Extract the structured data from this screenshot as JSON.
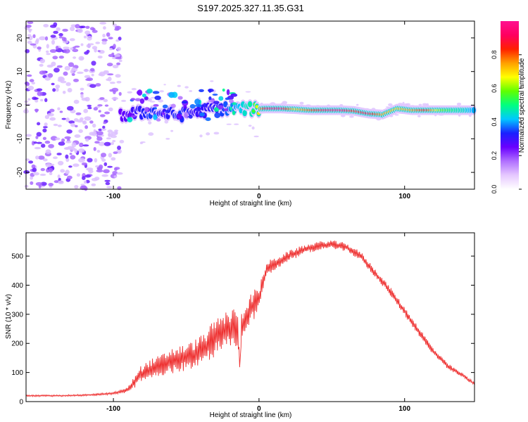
{
  "figure_title": "S197.2025.327.11.35.G31",
  "chart_data": [
    {
      "type": "heatmap",
      "title": "S197.2025.327.11.35.G31",
      "xlabel": "Height of straight line (km)",
      "ylabel": "Frequency (Hz)",
      "xlim": [
        -160,
        148
      ],
      "ylim": [
        -25,
        25
      ],
      "xticks": [
        -100,
        0,
        100
      ],
      "yticks": [
        -20,
        -10,
        0,
        10,
        20
      ],
      "colorbar": {
        "label": "Normalized spectral amplitude",
        "range": [
          0,
          1
        ],
        "ticks": [
          "0.0",
          "0.2",
          "0.4",
          "0.6",
          "0.8"
        ],
        "colors": [
          "#ffffff",
          "#e6c8ff",
          "#b070ff",
          "#6a00ff",
          "#1a20ff",
          "#00c8ff",
          "#00ff80",
          "#60ff00",
          "#ffff00",
          "#ffa000",
          "#ff2000",
          "#ff0060",
          "#ff1090"
        ]
      },
      "noise_region_x": [
        -160,
        -95
      ],
      "signal_track": {
        "x": [
          -95,
          -85,
          -75,
          -65,
          -55,
          -45,
          -35,
          -25,
          -15,
          -5,
          5,
          15,
          25,
          35,
          45,
          55,
          65,
          75,
          85,
          95,
          105,
          115,
          125,
          135,
          148
        ],
        "freq": [
          -3,
          -2.5,
          -2,
          -2.5,
          -3,
          -2,
          -1.5,
          -1,
          -1,
          -1.2,
          -1,
          -1,
          -1.2,
          -1.5,
          -1.5,
          -1.5,
          -1.7,
          -2.5,
          -2.8,
          -1,
          -1.5,
          -1.5,
          -1.5,
          -1.5,
          -1.5
        ],
        "amplitude": [
          0.25,
          0.3,
          0.35,
          0.3,
          0.35,
          0.3,
          0.3,
          0.35,
          0.4,
          0.5,
          0.9,
          0.95,
          0.7,
          0.8,
          0.9,
          0.95,
          0.85,
          0.9,
          0.75,
          0.7,
          0.75,
          0.85,
          0.6,
          0.5,
          0.4
        ]
      }
    },
    {
      "type": "line",
      "xlabel": "Height of straight line (km)",
      "ylabel": "SNR (10 * v/v)",
      "xlim": [
        -160,
        148
      ],
      "ylim": [
        0,
        580
      ],
      "xticks": [
        -100,
        0,
        100
      ],
      "yticks": [
        0,
        100,
        200,
        300,
        400,
        500
      ],
      "series": [
        {
          "name": "SNR",
          "color": "#ee3030",
          "x": [
            -160,
            -140,
            -120,
            -100,
            -90,
            -82,
            -75,
            -68,
            -60,
            -52,
            -45,
            -38,
            -30,
            -25,
            -20,
            -15,
            -13,
            -12,
            -8,
            -4,
            0,
            3,
            6,
            10,
            15,
            20,
            30,
            40,
            50,
            60,
            70,
            80,
            90,
            100,
            110,
            120,
            130,
            140,
            148
          ],
          "values": [
            20,
            20,
            22,
            28,
            40,
            90,
            110,
            120,
            140,
            150,
            160,
            180,
            220,
            240,
            250,
            260,
            120,
            260,
            300,
            330,
            350,
            420,
            460,
            470,
            485,
            500,
            520,
            535,
            540,
            530,
            500,
            440,
            380,
            310,
            240,
            170,
            120,
            90,
            60
          ],
          "spread": [
            6,
            6,
            6,
            8,
            20,
            60,
            70,
            80,
            90,
            90,
            100,
            110,
            130,
            130,
            130,
            140,
            40,
            100,
            100,
            110,
            80,
            60,
            50,
            45,
            40,
            35,
            35,
            30,
            30,
            30,
            30,
            30,
            30,
            30,
            30,
            25,
            20,
            15,
            12
          ]
        }
      ]
    }
  ]
}
